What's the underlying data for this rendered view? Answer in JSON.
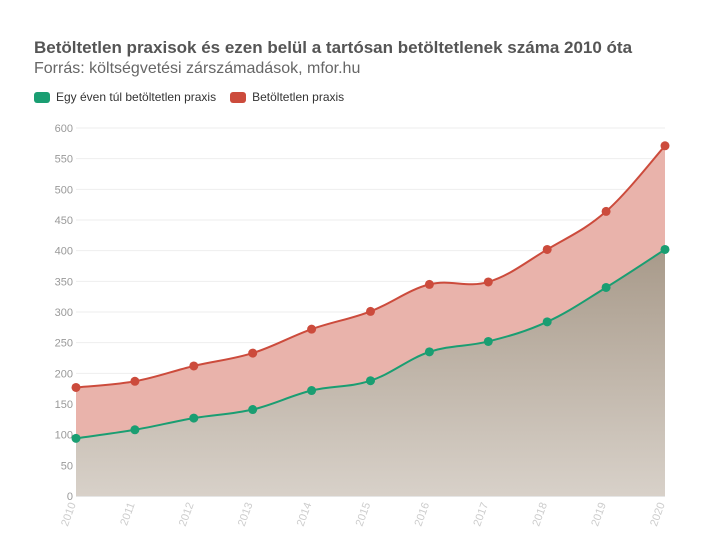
{
  "chart_data": {
    "type": "area",
    "title": "Betöltetlen praxisok és ezen belül a tartósan betöltetlenek száma 2010 óta",
    "subtitle": "Forrás: költségvetési zárszámadások, mfor.hu",
    "x": [
      "2010",
      "2011",
      "2012",
      "2013",
      "2014",
      "2015",
      "2016",
      "2017",
      "2018",
      "2019",
      "2020"
    ],
    "series": [
      {
        "name": "Egy éven túl betöltetlen praxis",
        "color": "#1a9e72",
        "fill": "#a89a8a",
        "values": [
          94,
          108,
          127,
          141,
          172,
          188,
          235,
          252,
          284,
          340,
          402
        ]
      },
      {
        "name": "Betöltetlen praxis",
        "color": "#cc4b3c",
        "fill": "#e9b3ab",
        "values": [
          177,
          187,
          212,
          233,
          272,
          301,
          345,
          349,
          402,
          464,
          571
        ]
      }
    ],
    "ylim": [
      0,
      600
    ],
    "yticks": [
      0,
      50,
      100,
      150,
      200,
      250,
      300,
      350,
      400,
      450,
      500,
      550,
      600
    ],
    "legend": "top-left",
    "grid": true
  }
}
